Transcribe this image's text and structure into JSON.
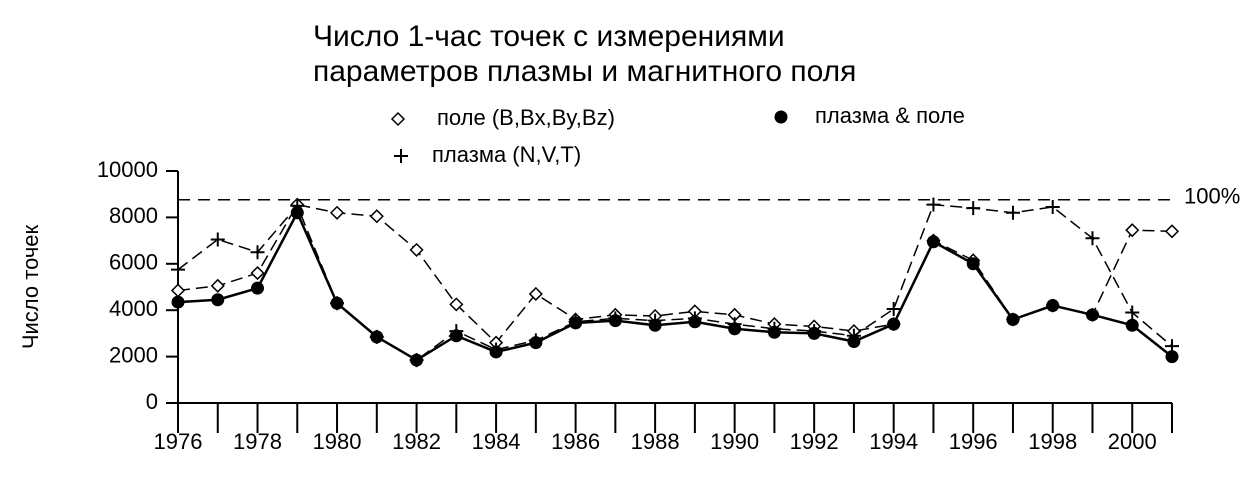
{
  "chart_data": {
    "type": "line",
    "title": [
      "Число 1-час точек с измерениями",
      "параметров плазмы и магнитного поля"
    ],
    "y_label": "Число точек",
    "x": [
      1976,
      1977,
      1978,
      1979,
      1980,
      1981,
      1982,
      1983,
      1984,
      1985,
      1986,
      1987,
      1988,
      1989,
      1990,
      1991,
      1992,
      1993,
      1994,
      1995,
      1996,
      1997,
      1998,
      1999,
      2000,
      2001
    ],
    "xlim": [
      1976,
      2001
    ],
    "xticks": [
      1976,
      1978,
      1980,
      1982,
      1984,
      1986,
      1988,
      1990,
      1992,
      1994,
      1996,
      1998,
      2000
    ],
    "ylim": [
      0,
      10000
    ],
    "yticks": [
      0,
      2000,
      4000,
      6000,
      8000,
      10000
    ],
    "reference_line": {
      "value": 8760,
      "label": "100%"
    },
    "series": [
      {
        "name": "поле (B,Bx,By,Bz)",
        "color": "#000000",
        "marker": "diamond",
        "dashed": true,
        "values": [
          4850,
          5050,
          5600,
          8550,
          8200,
          8050,
          6600,
          4250,
          2600,
          4700,
          3600,
          3800,
          3750,
          3950,
          3800,
          3400,
          3300,
          3100,
          3400,
          7000,
          6150,
          3600,
          4200,
          3800,
          7450,
          7400
        ]
      },
      {
        "name": "плазма (N,V,T)",
        "color": "#000000",
        "marker": "plus",
        "dashed": true,
        "values": [
          5750,
          7050,
          6500,
          8500,
          4300,
          2850,
          1850,
          3100,
          2300,
          2700,
          3500,
          3650,
          3550,
          3650,
          3400,
          3200,
          3100,
          2900,
          4050,
          8550,
          8400,
          8200,
          8450,
          7100,
          3900,
          2450
        ]
      },
      {
        "name": "плазма & поле",
        "color": "#000000",
        "marker": "circle",
        "dashed": false,
        "values": [
          4350,
          4450,
          4950,
          8200,
          4300,
          2850,
          1850,
          2900,
          2200,
          2600,
          3450,
          3550,
          3350,
          3500,
          3200,
          3050,
          3000,
          2650,
          3400,
          6950,
          6000,
          3600,
          4200,
          3800,
          3350,
          2000
        ]
      }
    ]
  }
}
